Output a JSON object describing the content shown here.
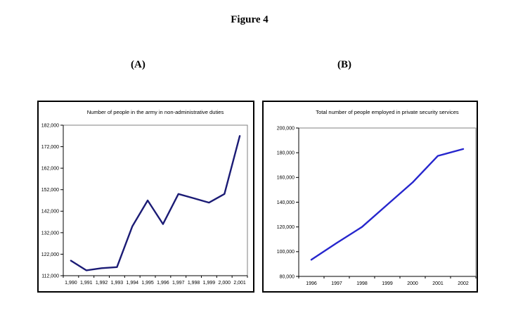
{
  "figure": {
    "title": "Figure 4",
    "panel_a_label": "(A)",
    "panel_b_label": "(B)"
  },
  "colors": {
    "chart_a_line": "#1b1b75",
    "chart_b_line": "#2626cd",
    "axis": "#000000",
    "plot_border": "#808080",
    "chart_border": "#000000",
    "background": "#ffffff"
  },
  "chart_data": [
    {
      "id": "chartA",
      "type": "line",
      "title": "Number of people in the army in non-administrative duties",
      "categories": [
        "1,990",
        "1,991",
        "1,992",
        "1,993",
        "1,994",
        "1,995",
        "1,996",
        "1,997",
        "1,998",
        "1,999",
        "2,000",
        "2,001"
      ],
      "values": [
        119000,
        114500,
        115500,
        116000,
        135000,
        147000,
        136000,
        150000,
        148000,
        146000,
        150000,
        177000
      ],
      "xlabel": "",
      "ylabel": "",
      "ylim": [
        112000,
        182000
      ],
      "ytick_step": 10000,
      "ytick_labels": [
        "112,000",
        "122,000",
        "132,000",
        "142,000",
        "152,000",
        "162,000",
        "172,000",
        "182,000"
      ],
      "line_color": "#1b1b75",
      "legend": "none",
      "grid": false
    },
    {
      "id": "chartB",
      "type": "line",
      "title": "Total number of people employed in private security services",
      "categories": [
        "1996",
        "1997",
        "1998",
        "1999",
        "2000",
        "2001",
        "2002"
      ],
      "values": [
        93500,
        107000,
        120000,
        138000,
        156000,
        177500,
        183000
      ],
      "xlabel": "",
      "ylabel": "",
      "ylim": [
        80000,
        200000
      ],
      "ytick_step": 20000,
      "ytick_labels": [
        "80,000",
        "100,000",
        "120,000",
        "140,000",
        "160,000",
        "180,000",
        "200,000"
      ],
      "line_color": "#2626cd",
      "legend": "none",
      "grid": false
    }
  ]
}
